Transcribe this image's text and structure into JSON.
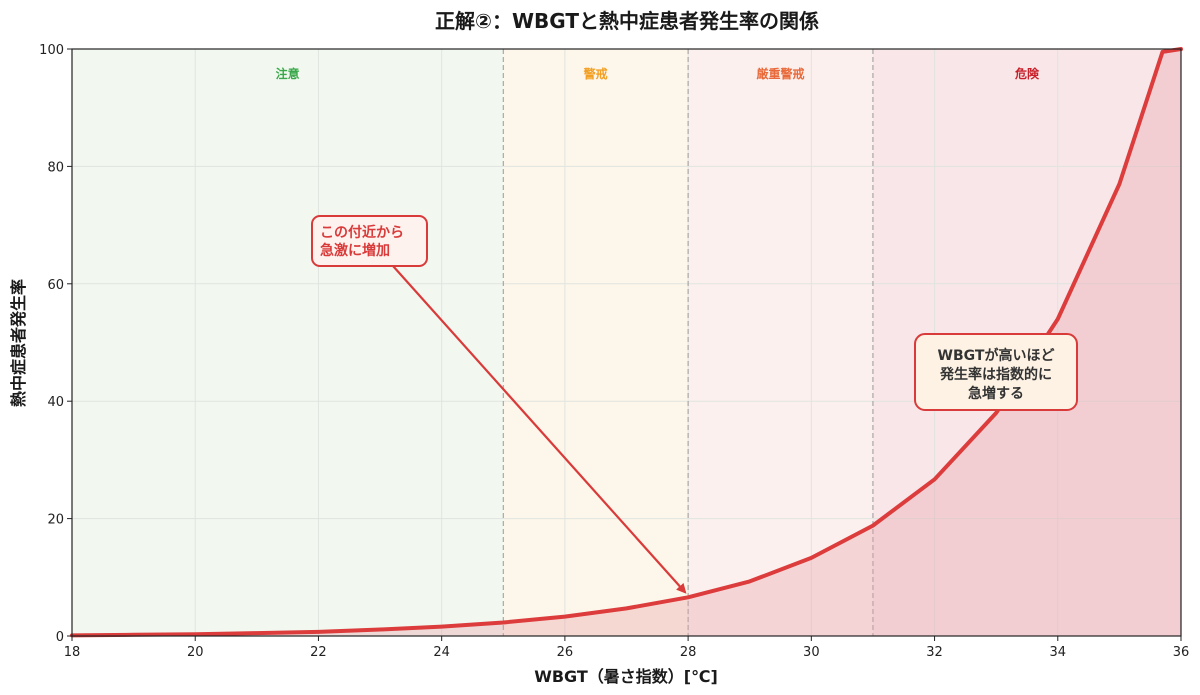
{
  "title": "正解②：WBGTと熱中症患者発生率の関係",
  "colors": {
    "curve": "#dc3c3c",
    "fill": "#e8a0a8",
    "annotation": "#d93a3a",
    "zone_boundary": "#999999",
    "grid": "#e0e4e0"
  },
  "chart_data": {
    "type": "area",
    "title": "正解②：WBGTと熱中症患者発生率の関係",
    "xlabel": "WBGT（暑さ指数）[℃]",
    "ylabel": "熱中症患者発生率",
    "xlim": [
      18,
      36
    ],
    "ylim": [
      0,
      100
    ],
    "x_ticks": [
      18,
      20,
      22,
      24,
      26,
      28,
      30,
      32,
      34,
      36
    ],
    "y_ticks": [
      0,
      20,
      40,
      60,
      80,
      100
    ],
    "grid": true,
    "series": [
      {
        "x": [
          18,
          19,
          20,
          21,
          22,
          23,
          24,
          25,
          26,
          27,
          28,
          29,
          30,
          31,
          32,
          33,
          34,
          35,
          35.7,
          36
        ],
        "y": [
          0.1,
          0.2,
          0.3,
          0.5,
          0.7,
          1.1,
          1.6,
          2.3,
          3.3,
          4.7,
          6.6,
          9.3,
          13.3,
          18.8,
          26.7,
          38.0,
          54.0,
          77.0,
          99.5,
          100
        ]
      }
    ],
    "zones": [
      {
        "label": "注意",
        "from": 18,
        "to": 25,
        "bg": "#f2f8f0",
        "text_color": "#3aa84a"
      },
      {
        "label": "警戒",
        "from": 25,
        "to": 28,
        "bg": "#fdf6ea",
        "text_color": "#f2a024"
      },
      {
        "label": "厳重警戒",
        "from": 28,
        "to": 31,
        "bg": "#fcf0ee",
        "text_color": "#e86a3a"
      },
      {
        "label": "危険",
        "from": 31,
        "to": 36,
        "bg": "#f8e6e8",
        "text_color": "#c8202a"
      }
    ],
    "annotations": [
      {
        "text_lines": [
          "この付近から",
          "急激に増加"
        ],
        "point": [
          28,
          6.6
        ],
        "text_color": "#d93a3a",
        "box_fill": "#fdf2ee",
        "border": "#d93a3a"
      },
      {
        "text_lines": [
          "WBGTが高いほど",
          "発生率は指数的に",
          "急増する"
        ],
        "text_color": "#333333",
        "box_fill": "#fdf2e4",
        "border": "#d93a3a"
      }
    ]
  }
}
